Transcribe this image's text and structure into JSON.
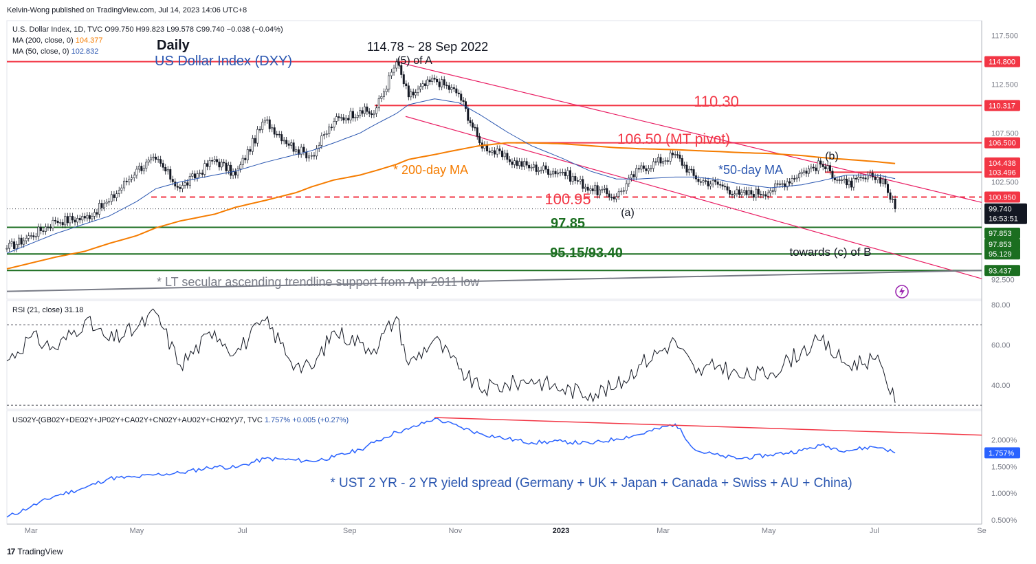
{
  "publisher": "Kelvin-Wong published on TradingView.com, Jul 14, 2023 14:06 UTC+8",
  "footer_brand": "TradingView",
  "footer_logo_glyph": "17",
  "price_pane": {
    "symbol_line": "U.S. Dollar Index, 1D, TVC",
    "ohlc": "O99.750  H99.823  L99.578  C99.740  −0.038 (−0.04%)",
    "ma200_label": "MA (200, close, 0)",
    "ma200_value": "104.377",
    "ma50_label": "MA (50, close, 0)",
    "ma50_value": "102.832",
    "title_daily": "Daily",
    "title_name": "US Dollar Index (DXY)",
    "peak_label": "114.78 ~ 28 Sep 2022",
    "wave5_label": "(5) of A",
    "wave_a_label": "(a)",
    "wave_b_label": "(b)",
    "wave_c_label": "towards (c) of B",
    "ma200_annotation": "* 200-day MA",
    "ma50_annotation": "*50-day MA",
    "lt_trend_annotation": "* LT secular ascending trendline support from Apr 2011 low",
    "level_110": "110.30",
    "level_106": "106.50 (MT pivot)",
    "level_100": "100.95",
    "level_97": "97.85",
    "level_95": "95.15/93.40",
    "axis_ticks": [
      "117.500",
      "112.500",
      "107.500",
      "102.500",
      "92.500"
    ],
    "price_tags": [
      {
        "text": "114.800",
        "color": "#f23645"
      },
      {
        "text": "110.317",
        "color": "#f23645"
      },
      {
        "text": "106.500",
        "color": "#f23645"
      },
      {
        "text": "104.438",
        "color": "#f23645"
      },
      {
        "text": "103.496",
        "color": "#f23645"
      },
      {
        "text": "100.950",
        "color": "#f23645"
      },
      {
        "text": "97.853",
        "color": "#1b6e20"
      },
      {
        "text": "97.853",
        "color": "#1b6e20"
      },
      {
        "text": "95.129",
        "color": "#1b6e20"
      },
      {
        "text": "93.437",
        "color": "#1b6e20"
      }
    ],
    "last_price": "99.740",
    "countdown": "16:53:51"
  },
  "rsi_pane": {
    "label": "RSI (21, close)",
    "value": "31.18",
    "axis_ticks": [
      "80.00",
      "60.00",
      "40.00"
    ]
  },
  "spread_pane": {
    "label": "US02Y-(GB02Y+DE02Y+JP02Y+CA02Y+CN02Y+AU02Y+CH02Y)/7, TVC",
    "value": "1.757%",
    "change": "+0.005 (+0.27%)",
    "annotation": "* UST 2 YR - 2 YR yield spread (Germany + UK + Japan + Canada + Swiss + AU + China)",
    "axis_ticks": [
      "2.000%",
      "1.500%",
      "1.000%",
      "0.500%"
    ],
    "last_tag": "1.757%"
  },
  "x_axis": [
    "Mar",
    "May",
    "Jul",
    "Sep",
    "Nov",
    "2023",
    "Mar",
    "May",
    "Jul",
    "Se"
  ],
  "colors": {
    "resistance": "#f23645",
    "support": "#1b6e20",
    "ma200": "#f57c00",
    "ma50": "#2a56b0",
    "channel": "#e91e63",
    "trend_lt": "#787b86",
    "spread": "#2962ff",
    "annotation_blue": "#2a56b0"
  },
  "chart_data": [
    {
      "type": "line",
      "subtype": "candlestick",
      "title": "US Dollar Index (DXY)",
      "x": [
        "2022-02-15",
        "2022-03-01",
        "2022-03-15",
        "2022-04-01",
        "2022-04-15",
        "2022-05-01",
        "2022-05-12",
        "2022-05-26",
        "2022-06-15",
        "2022-06-27",
        "2022-07-14",
        "2022-08-01",
        "2022-08-10",
        "2022-08-23",
        "2022-09-07",
        "2022-09-15",
        "2022-09-28",
        "2022-10-05",
        "2022-10-20",
        "2022-11-03",
        "2022-11-15",
        "2022-12-01",
        "2022-12-15",
        "2023-01-02",
        "2023-01-18",
        "2023-02-02",
        "2023-02-15",
        "2023-03-08",
        "2023-03-20",
        "2023-04-03",
        "2023-04-14",
        "2023-05-02",
        "2023-05-20",
        "2023-05-31",
        "2023-06-15",
        "2023-06-30",
        "2023-07-06",
        "2023-07-13"
      ],
      "series": [
        {
          "name": "DXY",
          "values": [
            95.7,
            97.0,
            98.5,
            98.8,
            100.5,
            103.8,
            104.8,
            101.8,
            104.8,
            103.2,
            108.8,
            105.8,
            105.2,
            108.7,
            109.8,
            109.5,
            114.78,
            111.2,
            113.0,
            111.5,
            106.5,
            104.8,
            104.0,
            103.5,
            101.8,
            101.0,
            103.8,
            105.3,
            102.8,
            102.2,
            101.2,
            101.6,
            103.5,
            104.3,
            102.2,
            103.0,
            102.8,
            99.74
          ]
        },
        {
          "name": "MA (200, close, 0)",
          "values": [
            93.6,
            94.2,
            94.8,
            95.4,
            96.2,
            97.0,
            97.8,
            98.5,
            99.2,
            99.9,
            100.6,
            101.4,
            102.0,
            102.7,
            103.2,
            103.6,
            104.3,
            104.8,
            105.3,
            105.8,
            106.2,
            106.5,
            106.5,
            106.4,
            106.2,
            106.0,
            105.9,
            105.8,
            105.7,
            105.6,
            105.5,
            105.4,
            105.2,
            105.0,
            104.8,
            104.6,
            104.5,
            104.377
          ]
        },
        {
          "name": "MA (50, close, 0)",
          "values": [
            95.2,
            96.2,
            97.2,
            98.2,
            99.0,
            100.5,
            101.8,
            102.5,
            103.2,
            103.6,
            104.5,
            105.3,
            105.7,
            106.5,
            107.5,
            108.3,
            109.5,
            110.4,
            111.0,
            110.6,
            109.4,
            107.6,
            106.2,
            104.9,
            103.6,
            102.8,
            102.8,
            103.0,
            103.0,
            102.7,
            102.3,
            101.9,
            102.2,
            102.6,
            103.2,
            103.2,
            103.1,
            102.832
          ]
        }
      ],
      "levels": [
        114.8,
        110.317,
        106.5,
        104.438,
        103.496,
        100.95,
        97.853,
        95.129,
        93.437
      ],
      "ylabel": "",
      "ylim": [
        90.5,
        119
      ],
      "grid": false
    },
    {
      "type": "line",
      "title": "RSI (21, close)",
      "x": [
        "2022-02-15",
        "2022-03-01",
        "2022-03-15",
        "2022-04-01",
        "2022-04-15",
        "2022-05-01",
        "2022-05-12",
        "2022-05-26",
        "2022-06-15",
        "2022-06-27",
        "2022-07-14",
        "2022-08-01",
        "2022-08-10",
        "2022-08-23",
        "2022-09-07",
        "2022-09-15",
        "2022-09-28",
        "2022-10-05",
        "2022-10-20",
        "2022-11-03",
        "2022-11-15",
        "2022-12-01",
        "2022-12-15",
        "2023-01-02",
        "2023-01-18",
        "2023-02-02",
        "2023-02-15",
        "2023-03-08",
        "2023-03-20",
        "2023-04-03",
        "2023-04-14",
        "2023-05-02",
        "2023-05-20",
        "2023-05-31",
        "2023-06-15",
        "2023-06-30",
        "2023-07-06",
        "2023-07-13"
      ],
      "series": [
        {
          "name": "RSI",
          "values": [
            52,
            64,
            58,
            72,
            62,
            68,
            76,
            50,
            67,
            56,
            72,
            50,
            48,
            67,
            61,
            58,
            74,
            50,
            63,
            48,
            38,
            40,
            43,
            38,
            36,
            39,
            50,
            62,
            46,
            50,
            44,
            46,
            57,
            62,
            50,
            53,
            48,
            31.18
          ]
        }
      ],
      "reference_lines": [
        70,
        30
      ],
      "ylim": [
        28,
        82
      ]
    },
    {
      "type": "line",
      "title": "US02Y-(GB02Y+DE02Y+JP02Y+CA02Y+CN02Y+AU02Y+CH02Y)/7",
      "x": [
        "2022-02-15",
        "2022-03-01",
        "2022-03-15",
        "2022-04-01",
        "2022-04-15",
        "2022-05-01",
        "2022-05-12",
        "2022-05-26",
        "2022-06-15",
        "2022-06-27",
        "2022-07-14",
        "2022-08-01",
        "2022-08-10",
        "2022-08-23",
        "2022-09-07",
        "2022-09-15",
        "2022-09-28",
        "2022-10-05",
        "2022-10-20",
        "2022-11-03",
        "2022-11-15",
        "2022-12-01",
        "2022-12-15",
        "2023-01-02",
        "2023-01-18",
        "2023-02-02",
        "2023-02-15",
        "2023-03-08",
        "2023-03-20",
        "2023-04-03",
        "2023-04-14",
        "2023-05-02",
        "2023-05-20",
        "2023-05-31",
        "2023-06-15",
        "2023-06-30",
        "2023-07-06",
        "2023-07-13"
      ],
      "series": [
        {
          "name": "Yield spread",
          "values": [
            0.55,
            0.75,
            0.95,
            1.1,
            1.28,
            1.3,
            1.35,
            1.38,
            1.5,
            1.48,
            1.65,
            1.62,
            1.6,
            1.68,
            1.82,
            1.95,
            2.15,
            2.2,
            2.4,
            2.25,
            2.12,
            2.02,
            1.95,
            1.97,
            1.93,
            2.02,
            2.1,
            2.3,
            1.8,
            1.7,
            1.65,
            1.72,
            1.8,
            1.9,
            1.8,
            1.87,
            1.85,
            1.757
          ]
        }
      ],
      "ylim": [
        0.42,
        2.55
      ],
      "ylabel": ""
    }
  ]
}
